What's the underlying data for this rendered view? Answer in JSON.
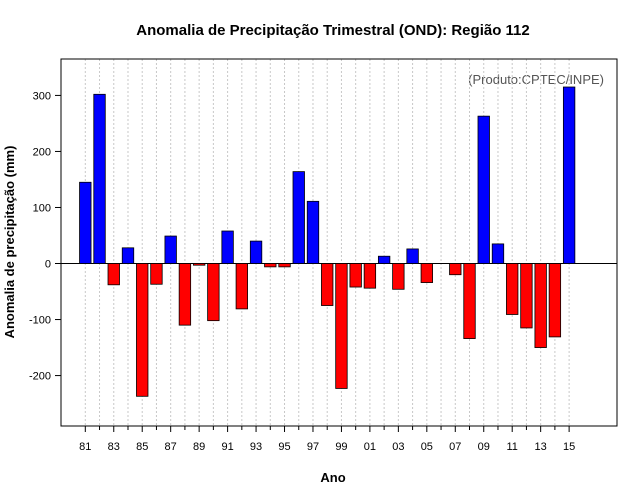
{
  "chart_data": {
    "type": "bar",
    "title": "Anomalia de Precipitação Trimestral (OND): Região 112",
    "xlabel": "Ano",
    "ylabel": "Anomalia de precipitação (mm)",
    "annotation": "(Produto:CPTEC/INPE)",
    "ylim": [
      -290,
      365
    ],
    "yticks": [
      -200,
      -100,
      0,
      100,
      200,
      300
    ],
    "grid": true,
    "colors": {
      "positive": "#0000ff",
      "negative": "#ff0000",
      "edge": "#000000"
    },
    "categories": [
      "81",
      "82",
      "83",
      "84",
      "85",
      "86",
      "87",
      "88",
      "89",
      "90",
      "91",
      "92",
      "93",
      "94",
      "95",
      "96",
      "97",
      "98",
      "99",
      "00",
      "01",
      "02",
      "03",
      "04",
      "05",
      "06",
      "07",
      "08",
      "09",
      "10",
      "11",
      "12",
      "13",
      "14",
      "15"
    ],
    "xtick_labels": [
      "81",
      "83",
      "85",
      "87",
      "89",
      "91",
      "93",
      "95",
      "97",
      "99",
      "01",
      "03",
      "05",
      "07",
      "09",
      "11",
      "13",
      "15"
    ],
    "values": [
      145,
      302,
      -38,
      28,
      -237,
      -37,
      49,
      -110,
      -3,
      -102,
      58,
      -81,
      40,
      -6,
      -6,
      164,
      111,
      -75,
      -223,
      -42,
      -44,
      13,
      -46,
      26,
      -34,
      0,
      -20,
      -134,
      263,
      35,
      -91,
      -115,
      -150,
      -131,
      315
    ]
  }
}
